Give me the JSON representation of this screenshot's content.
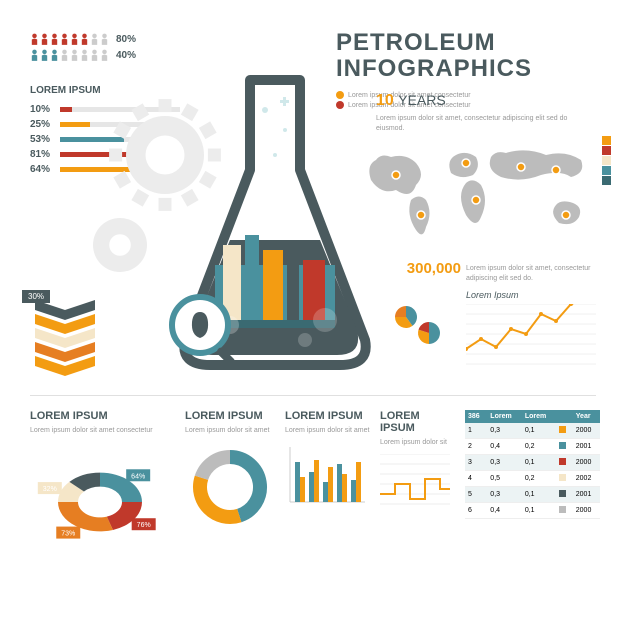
{
  "header": {
    "title_line1": "PETROLEUM",
    "title_line2": "INFOGRAPHICS",
    "legend": [
      {
        "color": "#f39c12",
        "text": "Lorem ipsum dolor sit amet consectetur"
      },
      {
        "color": "#c0392b",
        "text": "Lorem ipsum dolor sit amet consectetur"
      }
    ]
  },
  "colors": {
    "teal": "#4a919e",
    "darkteal": "#3a6a72",
    "orange": "#f39c12",
    "darkorange": "#e67e22",
    "red": "#c0392b",
    "slate": "#4a5a5e",
    "cream": "#f5e6c8",
    "gray": "#bcbcbc",
    "lightgray": "#e6e6e6"
  },
  "people": {
    "rows": [
      {
        "count": 8,
        "actives": [
          1,
          1,
          1,
          1,
          1,
          1,
          0,
          0
        ],
        "active_color": "#c0392b",
        "inactive_color": "#cccccc",
        "pct": "80%"
      },
      {
        "count": 8,
        "actives": [
          1,
          1,
          1,
          0,
          0,
          0,
          0,
          0
        ],
        "active_color": "#4a919e",
        "inactive_color": "#cccccc",
        "pct": "40%"
      }
    ]
  },
  "bar_list": {
    "title": "Lorem Ipsum",
    "rows": [
      {
        "pct": "10%",
        "value": 10,
        "color": "#c0392b"
      },
      {
        "pct": "25%",
        "value": 25,
        "color": "#f39c12"
      },
      {
        "pct": "53%",
        "value": 53,
        "color": "#4a919e"
      },
      {
        "pct": "81%",
        "value": 81,
        "color": "#c0392b"
      },
      {
        "pct": "64%",
        "value": 64,
        "color": "#f39c12"
      }
    ]
  },
  "years": {
    "number": "10",
    "label": "YEARS",
    "desc": "Lorem ipsum dolor sit amet, consectetur adipiscing elit sed do eiusmod."
  },
  "swatches": [
    "#f39c12",
    "#c0392b",
    "#f5e6c8",
    "#4a919e",
    "#3a6a72"
  ],
  "bignum": {
    "value": "300,000",
    "desc": "Lorem ipsum dolor sit amet, consectetur adipiscing elit sed do."
  },
  "chevrons": {
    "tag": "30%",
    "colors": [
      "#4a5a5e",
      "#f39c12",
      "#f5e6c8",
      "#e67e22",
      "#f39c12"
    ]
  },
  "pie_small": {
    "slices": [
      {
        "color": "#4a919e",
        "value": 40
      },
      {
        "color": "#f39c12",
        "value": 35
      },
      {
        "color": "#e67e22",
        "value": 25
      }
    ],
    "slices2": [
      {
        "color": "#4a919e",
        "value": 50
      },
      {
        "color": "#f39c12",
        "value": 30
      },
      {
        "color": "#c0392b",
        "value": 20
      }
    ]
  },
  "line_small": {
    "title": "Lorem Ipsum",
    "points": [
      [
        0,
        20
      ],
      [
        15,
        30
      ],
      [
        30,
        22
      ],
      [
        45,
        40
      ],
      [
        60,
        35
      ],
      [
        75,
        55
      ],
      [
        90,
        48
      ],
      [
        105,
        65
      ],
      [
        120,
        70
      ]
    ],
    "color": "#f39c12",
    "grid": "#e0e0e0"
  },
  "donut": {
    "title": "LOREM IPSUM",
    "desc": "Lorem ipsum dolor sit amet consectetur",
    "segments": [
      {
        "color": "#4a919e",
        "value": 25,
        "label": "64%"
      },
      {
        "color": "#c0392b",
        "value": 20,
        "label": "76%"
      },
      {
        "color": "#e67e22",
        "value": 30,
        "label": "73%"
      },
      {
        "color": "#f5e6c8",
        "value": 12,
        "label": "32%"
      },
      {
        "color": "#4a5a5e",
        "value": 13
      }
    ]
  },
  "ring": {
    "title": "LOREM IPSUM",
    "desc": "Lorem ipsum dolor sit amet",
    "colors": [
      "#4a919e",
      "#f39c12",
      "#bcbcbc"
    ],
    "values": [
      45,
      35,
      20
    ]
  },
  "bars": {
    "title": "LOREM IPSUM",
    "desc": "Lorem ipsum dolor sit amet",
    "pairs": [
      {
        "a": 40,
        "b": 25
      },
      {
        "a": 30,
        "b": 42
      },
      {
        "a": 20,
        "b": 35
      },
      {
        "a": 38,
        "b": 28
      },
      {
        "a": 22,
        "b": 40
      }
    ],
    "colors": [
      "#4a919e",
      "#f39c12"
    ]
  },
  "steps": {
    "title": "LOREM IPSUM",
    "desc": "Lorem ipsum dolor sit",
    "points": [
      [
        0,
        40
      ],
      [
        15,
        40
      ],
      [
        15,
        30
      ],
      [
        30,
        30
      ],
      [
        30,
        45
      ],
      [
        45,
        45
      ],
      [
        45,
        25
      ],
      [
        60,
        25
      ],
      [
        60,
        35
      ],
      [
        70,
        35
      ]
    ],
    "color": "#f39c12"
  },
  "table": {
    "headers": [
      "386",
      "Lorem",
      "Lorem",
      "",
      "Year"
    ],
    "rows": [
      [
        "1",
        "0,3",
        "0,1",
        "#f39c12",
        "2000"
      ],
      [
        "2",
        "0,4",
        "0,2",
        "#4a919e",
        "2001"
      ],
      [
        "3",
        "0,3",
        "0,1",
        "#c0392b",
        "2000"
      ],
      [
        "4",
        "0,5",
        "0,2",
        "#f5e6c8",
        "2002"
      ],
      [
        "5",
        "0,3",
        "0,1",
        "#4a5a5e",
        "2001"
      ],
      [
        "6",
        "0,4",
        "0,1",
        "#bcbcbc",
        "2000"
      ]
    ]
  }
}
